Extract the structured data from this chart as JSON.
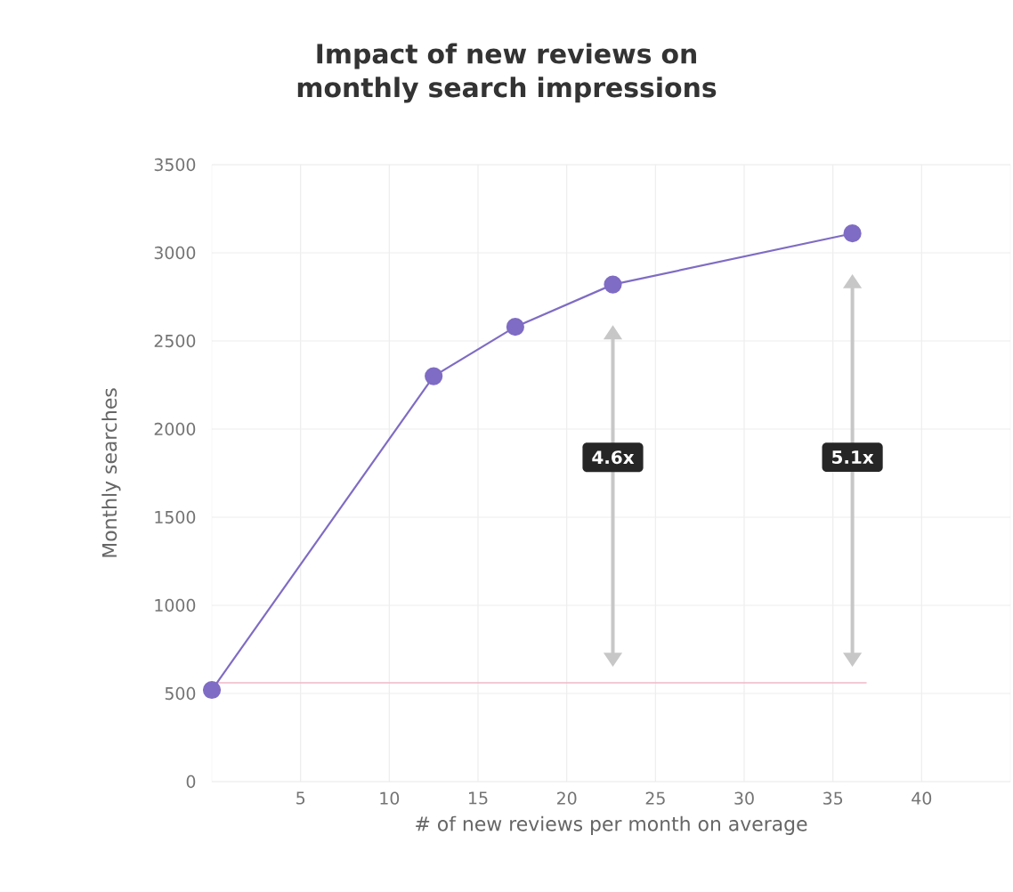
{
  "chart_data": {
    "type": "line",
    "title": "Impact of new reviews on monthly search impressions",
    "xlabel": "# of new reviews per month on average",
    "ylabel": "Monthly searches",
    "x": [
      0,
      12.5,
      17.1,
      22.6,
      36.1
    ],
    "series": [
      {
        "color": "#7f6cc4",
        "values": [
          520,
          2300,
          2580,
          2820,
          3110
        ]
      }
    ],
    "marker": "circle",
    "line_style": "solid",
    "grid": true,
    "xlim": [
      0,
      45
    ],
    "xticks": [
      5,
      10,
      15,
      20,
      25,
      30,
      35,
      40
    ],
    "ylim": [
      0,
      3500
    ],
    "yticks": [
      0,
      500,
      1000,
      1500,
      2000,
      2500,
      3000,
      3500
    ],
    "ref_lines": [
      {
        "axis": "y",
        "value": 560,
        "color": "#f0b8c4"
      }
    ],
    "annotations": [
      "4.6x",
      "5.1x"
    ]
  }
}
